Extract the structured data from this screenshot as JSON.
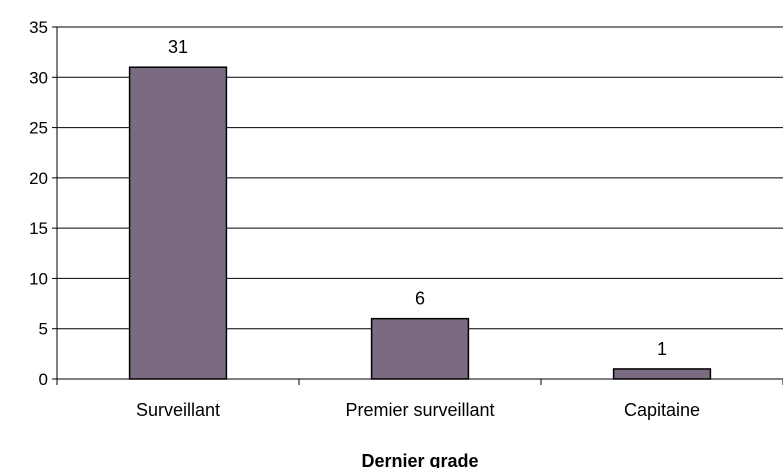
{
  "chart_data": {
    "type": "bar",
    "title": "",
    "xlabel": "Dernier grade",
    "ylabel": "",
    "categories": [
      "Surveillant",
      "Premier surveillant",
      "Capitaine"
    ],
    "values": [
      31,
      6,
      1
    ],
    "ylim": [
      0,
      35
    ],
    "yticks": [
      0,
      5,
      10,
      15,
      20,
      25,
      30,
      35
    ],
    "grid": true,
    "legend": "none",
    "data_labels": true,
    "colors": {
      "bar_fill": "#7b6b82",
      "bar_stroke": "#000000",
      "plot_background": "#ffffff",
      "gridline": "#000000",
      "axis": "#000000"
    }
  }
}
